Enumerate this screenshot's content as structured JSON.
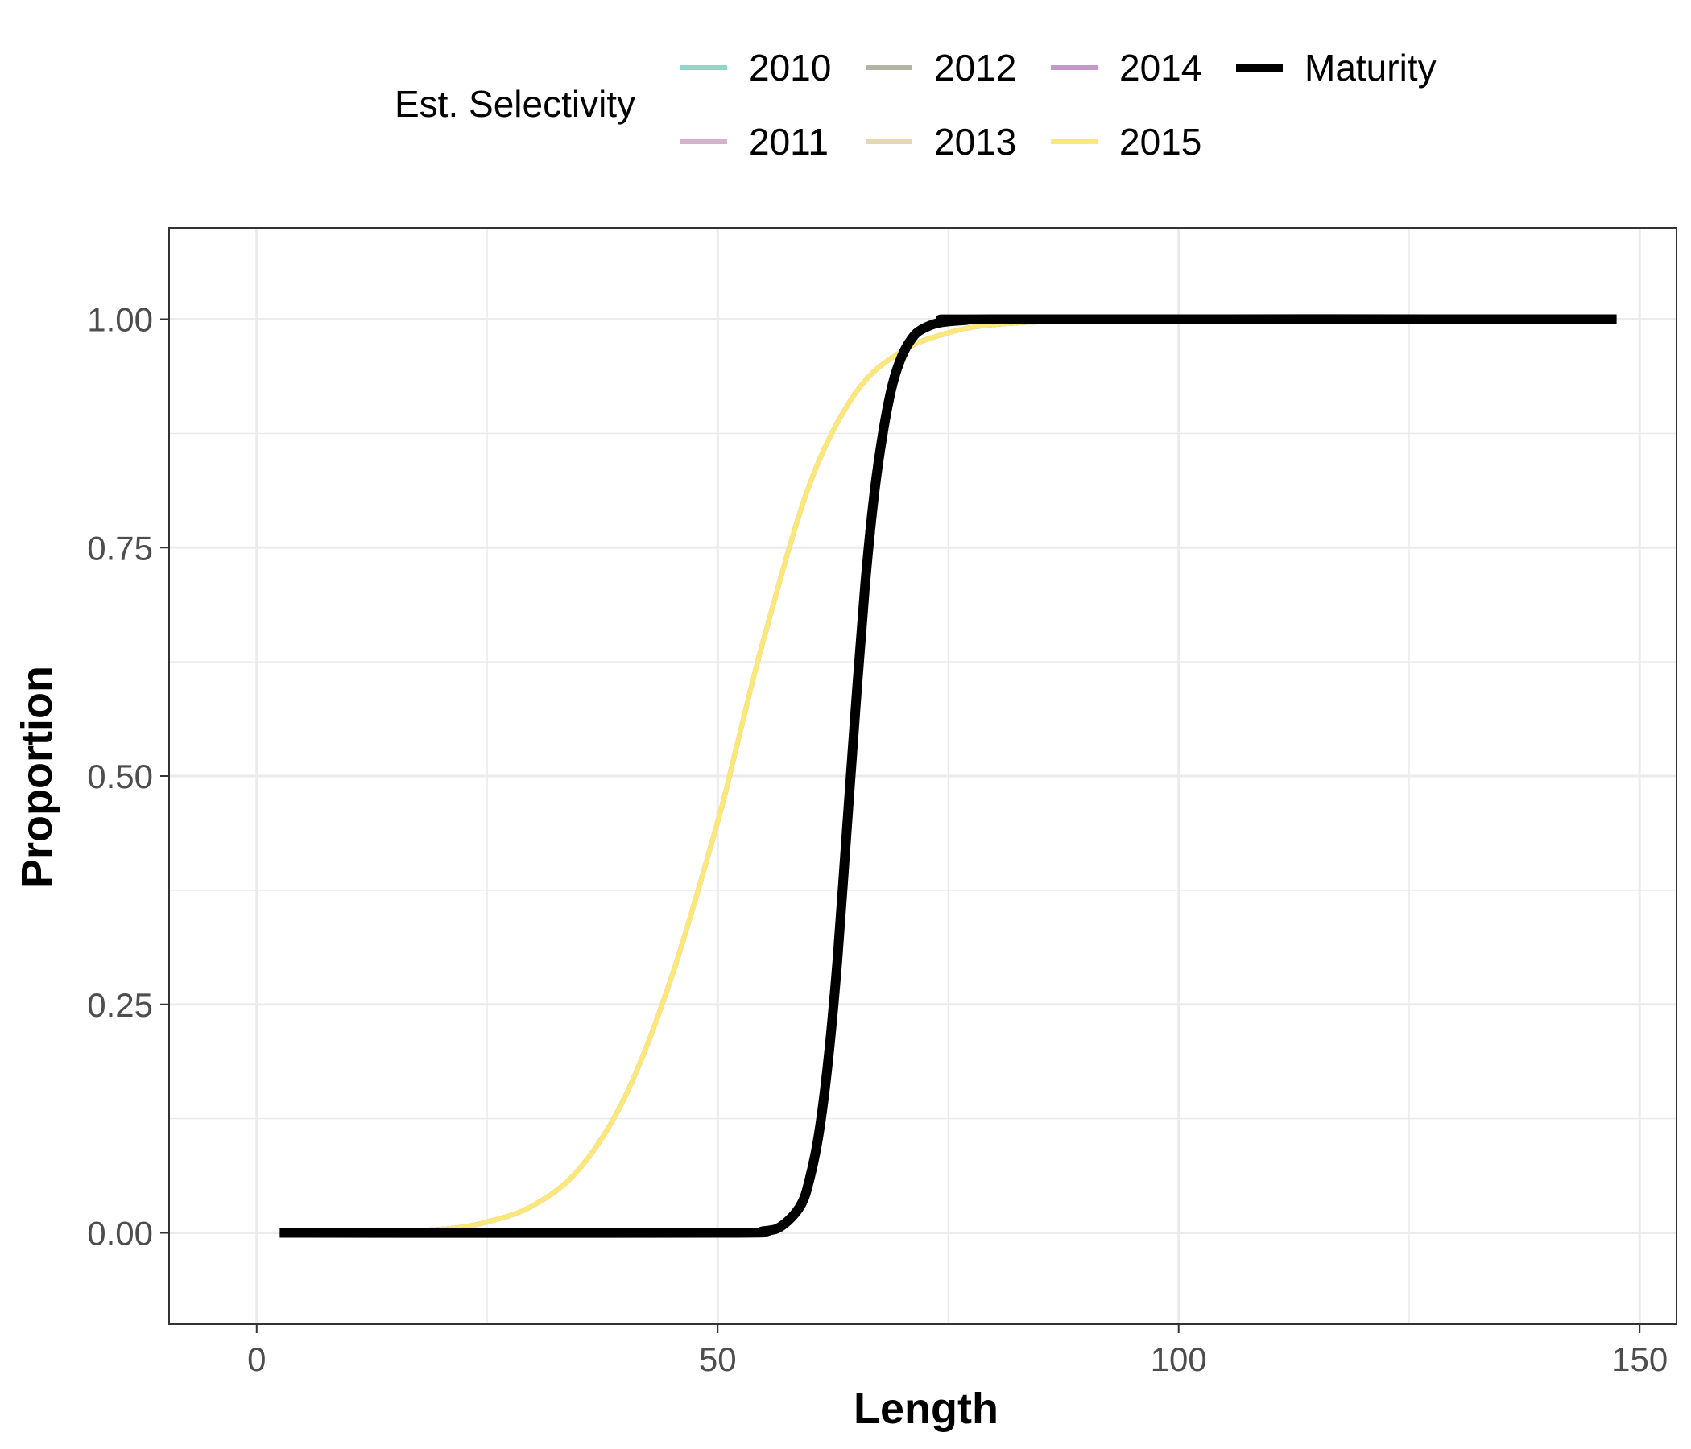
{
  "chart_data": {
    "type": "line",
    "title": "",
    "xlabel": "Length",
    "ylabel": "Proportion",
    "xlim": [
      -9.5,
      154
    ],
    "ylim": [
      -0.1,
      1.1
    ],
    "x_ticks": [
      0,
      50,
      100,
      150
    ],
    "x_tick_labels": [
      "0",
      "50",
      "100",
      "150"
    ],
    "y_ticks": [
      0,
      0.25,
      0.5,
      0.75,
      1.0
    ],
    "y_tick_labels": [
      "0.00",
      "0.25",
      "0.50",
      "0.75",
      "1.00"
    ],
    "grid": true,
    "legend": {
      "title": "Est. Selectivity",
      "position": "top",
      "entries": [
        {
          "label": "2010",
          "color": "#8fd8c8"
        },
        {
          "label": "2011",
          "color": "#d4b4cc"
        },
        {
          "label": "2012",
          "color": "#b4b4a4"
        },
        {
          "label": "2013",
          "color": "#e4d8b4"
        },
        {
          "label": "2014",
          "color": "#c498c8"
        },
        {
          "label": "2015",
          "color": "#fce878"
        },
        {
          "label": "Maturity",
          "color": "#000000"
        }
      ]
    },
    "series": [
      {
        "name": "2010",
        "color": "#8fd8c8",
        "x": [
          2.5,
          10,
          20,
          25,
          30,
          35,
          40,
          45,
          50,
          52,
          55,
          60,
          65,
          70,
          75,
          80,
          90,
          100,
          147.5
        ],
        "y": [
          0.0,
          0.0,
          0.004,
          0.012,
          0.03,
          0.07,
          0.15,
          0.28,
          0.45,
          0.53,
          0.65,
          0.82,
          0.92,
          0.965,
          0.985,
          0.994,
          0.999,
          1.0,
          1.0
        ]
      },
      {
        "name": "2011",
        "color": "#d4b4cc",
        "x": [
          2.5,
          10,
          20,
          25,
          30,
          35,
          40,
          45,
          50,
          52,
          55,
          60,
          65,
          70,
          75,
          80,
          90,
          100,
          147.5
        ],
        "y": [
          0.0,
          0.0,
          0.004,
          0.012,
          0.03,
          0.07,
          0.15,
          0.28,
          0.45,
          0.53,
          0.65,
          0.82,
          0.92,
          0.965,
          0.985,
          0.994,
          0.999,
          1.0,
          1.0
        ]
      },
      {
        "name": "2012",
        "color": "#b4b4a4",
        "x": [
          2.5,
          10,
          20,
          25,
          30,
          35,
          40,
          45,
          50,
          52,
          55,
          60,
          65,
          70,
          75,
          80,
          90,
          100,
          147.5
        ],
        "y": [
          0.0,
          0.0,
          0.004,
          0.012,
          0.03,
          0.07,
          0.15,
          0.28,
          0.45,
          0.53,
          0.65,
          0.82,
          0.92,
          0.965,
          0.985,
          0.994,
          0.999,
          1.0,
          1.0
        ]
      },
      {
        "name": "2013",
        "color": "#e4d8b4",
        "x": [
          2.5,
          10,
          20,
          25,
          30,
          35,
          40,
          45,
          50,
          52,
          55,
          60,
          65,
          70,
          75,
          80,
          90,
          100,
          147.5
        ],
        "y": [
          0.0,
          0.0,
          0.004,
          0.012,
          0.03,
          0.07,
          0.15,
          0.28,
          0.45,
          0.53,
          0.65,
          0.82,
          0.92,
          0.965,
          0.985,
          0.994,
          0.999,
          1.0,
          1.0
        ]
      },
      {
        "name": "2014",
        "color": "#c498c8",
        "x": [
          2.5,
          10,
          20,
          25,
          30,
          35,
          40,
          45,
          50,
          52,
          55,
          60,
          65,
          70,
          75,
          80,
          90,
          100,
          147.5
        ],
        "y": [
          0.0,
          0.0,
          0.004,
          0.012,
          0.03,
          0.07,
          0.15,
          0.28,
          0.45,
          0.53,
          0.65,
          0.82,
          0.92,
          0.965,
          0.985,
          0.994,
          0.999,
          1.0,
          1.0
        ]
      },
      {
        "name": "2015",
        "color": "#fce878",
        "x": [
          2.5,
          10,
          20,
          25,
          30,
          35,
          40,
          45,
          50,
          52,
          55,
          60,
          65,
          70,
          75,
          80,
          90,
          100,
          147.5
        ],
        "y": [
          0.0,
          0.0,
          0.004,
          0.012,
          0.03,
          0.07,
          0.15,
          0.28,
          0.45,
          0.53,
          0.65,
          0.82,
          0.92,
          0.965,
          0.985,
          0.994,
          0.999,
          1.0,
          1.0
        ]
      },
      {
        "name": "Maturity",
        "color": "#000000",
        "x": [
          2.5,
          50,
          55,
          57,
          59,
          60,
          61,
          62,
          63,
          64,
          65,
          66,
          67,
          68,
          69,
          70,
          71,
          72,
          74,
          77,
          80,
          147.5
        ],
        "y": [
          0.0,
          0.0,
          0.002,
          0.008,
          0.03,
          0.06,
          0.11,
          0.19,
          0.3,
          0.44,
          0.58,
          0.71,
          0.81,
          0.88,
          0.93,
          0.96,
          0.978,
          0.988,
          0.996,
          0.999,
          1.0,
          1.0
        ]
      }
    ]
  }
}
